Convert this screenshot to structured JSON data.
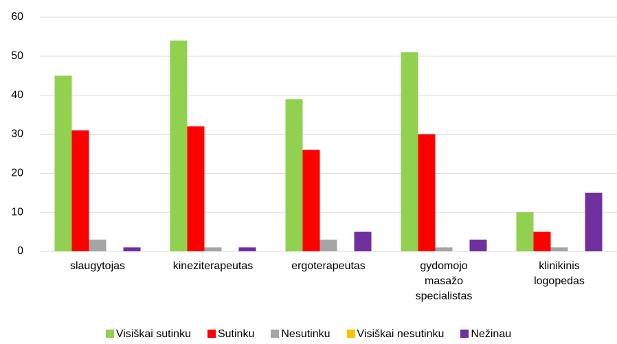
{
  "chart_data": {
    "type": "bar",
    "categories": [
      "slaugytojas",
      "kineziterapeutas",
      "ergoterapeutas",
      "gydomojo masažo specialistas",
      "klinikinis logopedas"
    ],
    "series": [
      {
        "name": "Visiškai sutinku",
        "color": "#92d050",
        "values": [
          45,
          54,
          39,
          51,
          10
        ]
      },
      {
        "name": "Sutinku",
        "color": "#ff0000",
        "values": [
          31,
          32,
          26,
          30,
          5
        ]
      },
      {
        "name": "Nesutinku",
        "color": "#a5a5a5",
        "values": [
          3,
          1,
          3,
          1,
          1
        ]
      },
      {
        "name": "Visiškai nesutinku",
        "color": "#ffc000",
        "values": [
          0,
          0,
          0,
          0,
          0
        ]
      },
      {
        "name": "Nežinau",
        "color": "#7030a0",
        "values": [
          1,
          1,
          5,
          3,
          15
        ]
      }
    ],
    "ylim": [
      0,
      60
    ],
    "yticks": [
      0,
      10,
      20,
      30,
      40,
      50,
      60
    ],
    "grid": true,
    "legend": "bottom"
  }
}
